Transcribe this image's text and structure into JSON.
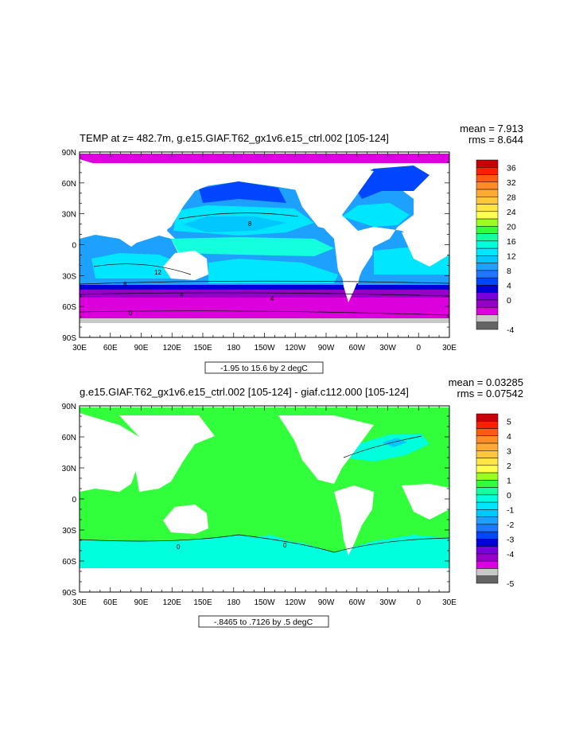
{
  "chart_data": [
    {
      "type": "heatmap",
      "id": "top",
      "title": "TEMP at z= 482.7m, g.e15.GIAF.T62_gx1v6.e15_ctrl.002 [105-124]",
      "stats": {
        "mean": "mean = 7.913",
        "rms": "rms = 8.644"
      },
      "range_label": "-1.95 to 15.6 by 2 degC",
      "x_ticks": [
        "30E",
        "60E",
        "90E",
        "120E",
        "150E",
        "180",
        "150W",
        "120W",
        "90W",
        "60W",
        "30W",
        "0",
        "30E"
      ],
      "y_ticks": [
        "90N",
        "60N",
        "30N",
        "0",
        "30S",
        "60S",
        "90S"
      ],
      "colorbar": {
        "labels": [
          "36",
          "32",
          "28",
          "24",
          "20",
          "16",
          "12",
          "8",
          "4",
          "0",
          "-4"
        ],
        "colors": [
          "#c8000a",
          "#ff1e00",
          "#ff5a14",
          "#ff8c28",
          "#ffaa32",
          "#ffc83c",
          "#ffe646",
          "#ffff50",
          "#9bff1e",
          "#32ff3c",
          "#14ffa0",
          "#00ffdc",
          "#00e6ff",
          "#00c8ff",
          "#1ea0ff",
          "#1e78ff",
          "#0046ff",
          "#0000dc",
          "#7800dc",
          "#9600c8",
          "#dc00dc",
          "#c8c8c8",
          "#646464"
        ]
      },
      "contour_labels": [
        "8",
        "12",
        "4",
        "8",
        "4",
        "0"
      ]
    },
    {
      "type": "heatmap",
      "id": "bottom",
      "title": "g.e15.GIAF.T62_gx1v6.e15_ctrl.002 [105-124] - giaf.c112.000 [105-124]",
      "stats": {
        "mean": "mean = 0.03285",
        "rms": "rms = 0.07542"
      },
      "range_label": "-.8465 to .7126 by .5 degC",
      "x_ticks": [
        "30E",
        "60E",
        "90E",
        "120E",
        "150E",
        "180",
        "150W",
        "120W",
        "90W",
        "60W",
        "30W",
        "0",
        "30E"
      ],
      "y_ticks": [
        "90N",
        "60N",
        "30N",
        "0",
        "30S",
        "60S",
        "90S"
      ],
      "colorbar": {
        "labels": [
          "5",
          "4",
          "3",
          "2",
          "1",
          "0",
          "-1",
          "-2",
          "-3",
          "-4",
          "-5"
        ],
        "colors": [
          "#c8000a",
          "#ff1e00",
          "#ff5a14",
          "#ff8c28",
          "#ffaa32",
          "#ffc83c",
          "#ffe646",
          "#ffff50",
          "#9bff1e",
          "#32ff3c",
          "#14ffa0",
          "#00ffdc",
          "#00e6ff",
          "#00c8ff",
          "#1ea0ff",
          "#1e78ff",
          "#0046ff",
          "#0000dc",
          "#7800dc",
          "#9600c8",
          "#dc00dc",
          "#c8c8c8",
          "#646464"
        ]
      },
      "contour_labels": [
        "0",
        "0"
      ]
    }
  ]
}
